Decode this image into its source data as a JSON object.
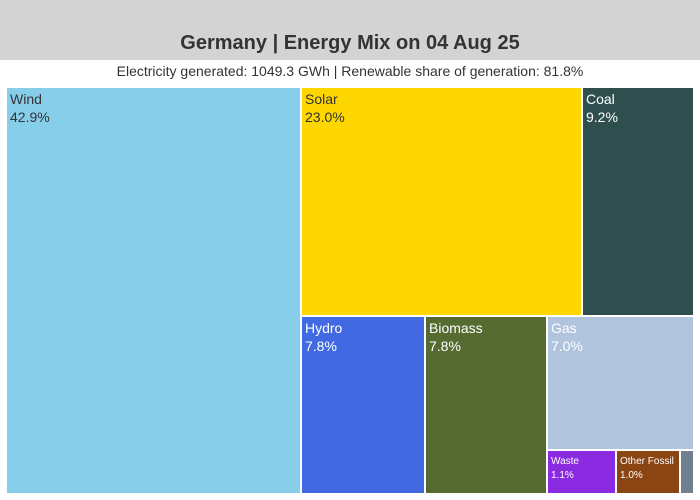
{
  "title": "Germany | Energy Mix on 04 Aug 25",
  "subtitle": "Electricity generated: 1049.3 GWh | Renewable share of generation: 81.8%",
  "chart_data": {
    "type": "treemap",
    "title": "Germany | Energy Mix on 04 Aug 25",
    "subtitle": "Electricity generated: 1049.3 GWh | Renewable share of generation: 81.8%",
    "items": [
      {
        "name": "Wind",
        "label": "42.9%",
        "share": 42.9,
        "color": "#87ceeb",
        "text_color": "#333333"
      },
      {
        "name": "Solar",
        "label": "23.0%",
        "share": 23.0,
        "color": "#ffd700",
        "text_color": "#333333"
      },
      {
        "name": "Coal",
        "label": "9.2%",
        "share": 9.2,
        "color": "#2f4f4f",
        "text_color": "#ffffff"
      },
      {
        "name": "Hydro",
        "label": "7.8%",
        "share": 7.8,
        "color": "#4169e1",
        "text_color": "#ffffff"
      },
      {
        "name": "Biomass",
        "label": "7.8%",
        "share": 7.8,
        "color": "#556b2f",
        "text_color": "#ffffff"
      },
      {
        "name": "Gas",
        "label": "7.0%",
        "share": 7.0,
        "color": "#b0c4de",
        "text_color": "#ffffff"
      },
      {
        "name": "Waste",
        "label": "1.1%",
        "share": 1.1,
        "color": "#8a2be2",
        "text_color": "#ffffff"
      },
      {
        "name": "Other Fossil",
        "label": "1.0%",
        "share": 1.0,
        "color": "#8b4513",
        "text_color": "#ffffff"
      },
      {
        "name": "",
        "label": "",
        "share": 0.2,
        "color": "#708090",
        "text_color": "#ffffff"
      }
    ]
  }
}
